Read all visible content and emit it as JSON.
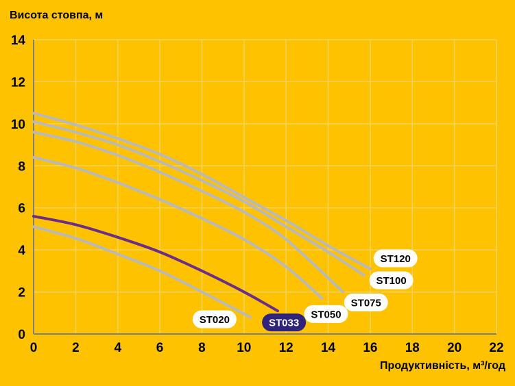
{
  "chart_data": {
    "type": "line",
    "ylabel": "Висота стовпа, м",
    "xlabel": "Продуктивність, м³/год",
    "xlim": [
      0,
      22
    ],
    "ylim": [
      0,
      14
    ],
    "xticks": [
      0,
      2,
      4,
      6,
      8,
      10,
      12,
      14,
      16,
      18,
      20,
      22
    ],
    "yticks": [
      0,
      2,
      4,
      6,
      8,
      10,
      12,
      14
    ],
    "grid": true,
    "series": [
      {
        "name": "ST020",
        "color": "#B9B9B9",
        "x": [
          0,
          2,
          4,
          6,
          8,
          10.3
        ],
        "y": [
          5.1,
          4.55,
          3.8,
          3.0,
          2.0,
          0.8
        ]
      },
      {
        "name": "ST033",
        "color": "#6B2E87",
        "highlight": true,
        "x": [
          0,
          2,
          4,
          6,
          8,
          10,
          11.6
        ],
        "y": [
          5.6,
          5.2,
          4.6,
          3.9,
          3.0,
          2.0,
          1.1
        ]
      },
      {
        "name": "ST050",
        "color": "#B9B9B9",
        "x": [
          0,
          2,
          4,
          6,
          8,
          10,
          12,
          13.7
        ],
        "y": [
          8.4,
          7.9,
          7.2,
          6.4,
          5.5,
          4.5,
          3.2,
          1.7
        ]
      },
      {
        "name": "ST075",
        "color": "#B9B9B9",
        "x": [
          0,
          2,
          4,
          6,
          8,
          10,
          12,
          14.7
        ],
        "y": [
          9.6,
          9.15,
          8.5,
          7.7,
          6.8,
          5.8,
          4.5,
          2.0
        ]
      },
      {
        "name": "ST100",
        "color": "#B9B9B9",
        "x": [
          0,
          2,
          4,
          6,
          8,
          10,
          12,
          14,
          15.7
        ],
        "y": [
          10.1,
          9.6,
          9.0,
          8.2,
          7.3,
          6.3,
          5.1,
          3.9,
          2.8
        ]
      },
      {
        "name": "ST120",
        "color": "#B9B9B9",
        "x": [
          0,
          2,
          4,
          6,
          8,
          10,
          12,
          14,
          16
        ],
        "y": [
          10.5,
          9.95,
          9.3,
          8.55,
          7.6,
          6.5,
          5.4,
          4.2,
          3.1
        ]
      }
    ],
    "labels": [
      {
        "text": "ST020",
        "x": 8.6,
        "y": 0.7,
        "bg": "#FFFFFF",
        "fg": "#000000"
      },
      {
        "text": "ST033",
        "x": 11.9,
        "y": 0.55,
        "bg": "#30237A",
        "fg": "#FFFFFF"
      },
      {
        "text": "ST050",
        "x": 13.9,
        "y": 0.95,
        "bg": "#FFFFFF",
        "fg": "#000000"
      },
      {
        "text": "ST075",
        "x": 15.8,
        "y": 1.5,
        "bg": "#FFFFFF",
        "fg": "#000000"
      },
      {
        "text": "ST100",
        "x": 17.0,
        "y": 2.55,
        "bg": "#FFFFFF",
        "fg": "#000000"
      },
      {
        "text": "ST120",
        "x": 17.2,
        "y": 3.6,
        "bg": "#FFFFFF",
        "fg": "#000000"
      }
    ],
    "colors": {
      "background": "#FFC200",
      "grid": "#F2D35A",
      "axis": "#7F7F7F"
    }
  }
}
